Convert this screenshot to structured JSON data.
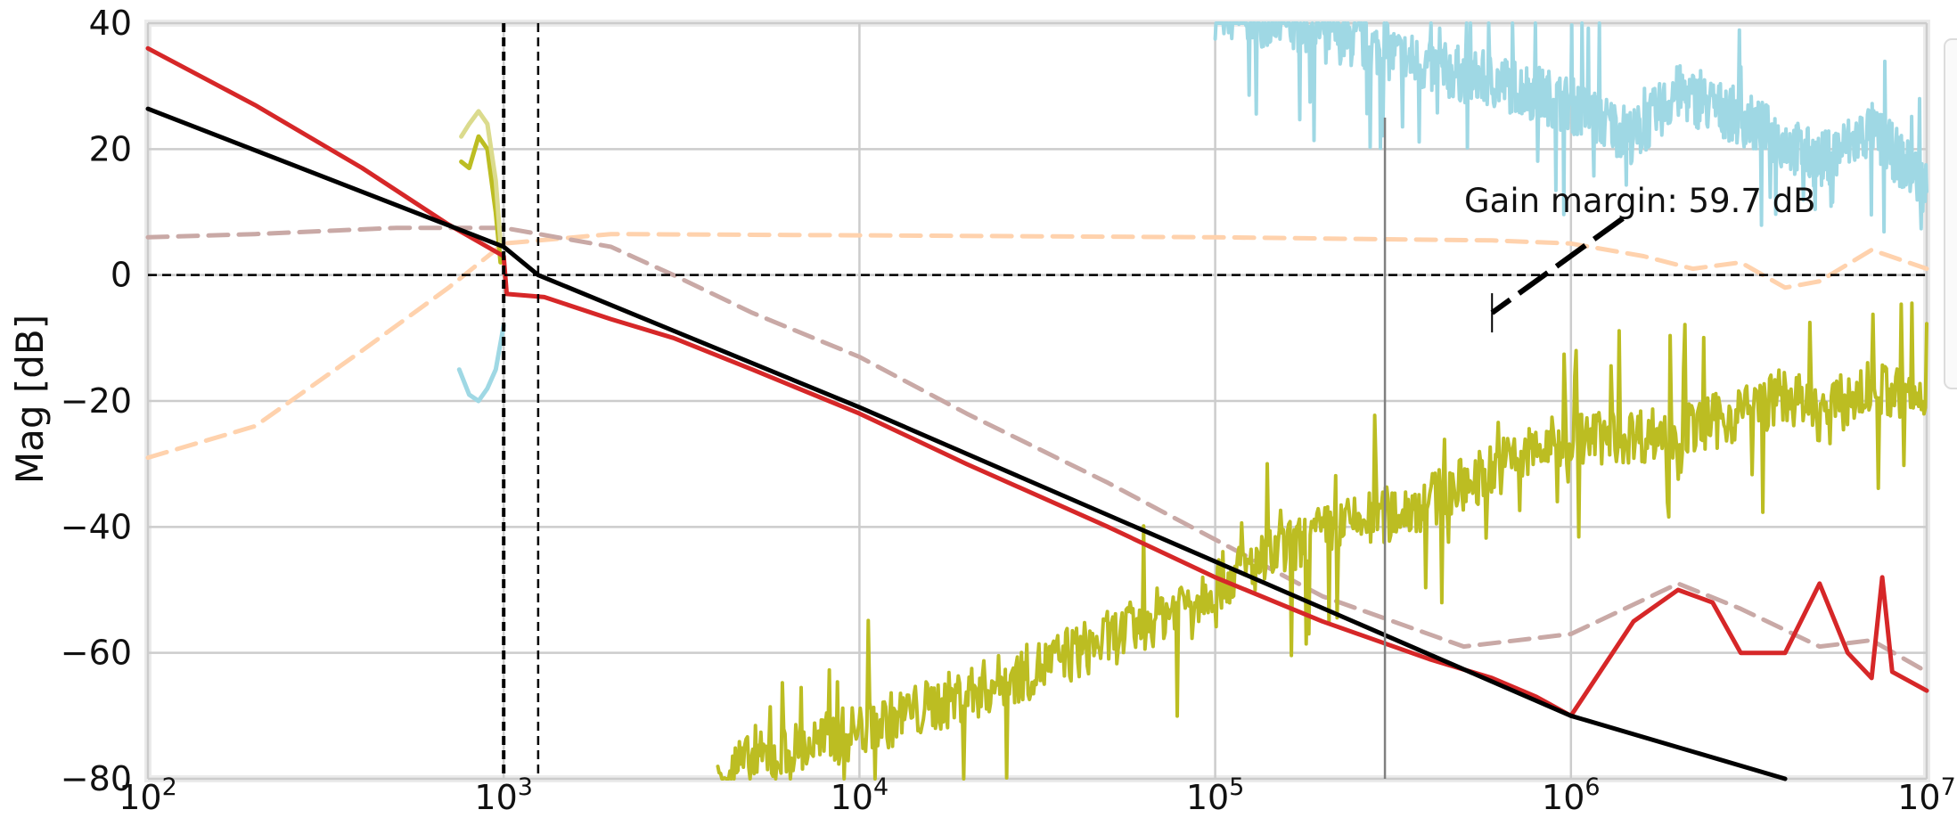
{
  "chart_data": {
    "type": "line",
    "title": "",
    "xlabel": "",
    "ylabel": "Mag [dB]",
    "x_scale": "log",
    "xlim": [
      100,
      10000000
    ],
    "ylim": [
      -80,
      40
    ],
    "grid": true,
    "x_ticks": [
      {
        "value": 100,
        "base": "10",
        "exp": "2"
      },
      {
        "value": 1000,
        "base": "10",
        "exp": "3"
      },
      {
        "value": 10000,
        "base": "10",
        "exp": "4"
      },
      {
        "value": 100000,
        "base": "10",
        "exp": "5"
      },
      {
        "value": 1000000,
        "base": "10",
        "exp": "6"
      },
      {
        "value": 10000000,
        "base": "10",
        "exp": "7"
      }
    ],
    "y_ticks": [
      {
        "value": 40,
        "label": "40"
      },
      {
        "value": 20,
        "label": "20"
      },
      {
        "value": 0,
        "label": "0"
      },
      {
        "value": -20,
        "label": "−20"
      },
      {
        "value": -40,
        "label": "−40"
      },
      {
        "value": -60,
        "label": "−60"
      },
      {
        "value": -80,
        "label": "−80"
      }
    ],
    "reference_lines": {
      "horizontal_dashed_y": 0,
      "vertical_dashed_x": [
        1000,
        1250
      ],
      "vertical_solid_x": 300000
    },
    "annotation": {
      "text": "Gain margin: 59.7 dB",
      "arrow_from": [
        1400000,
        9
      ],
      "arrow_to": [
        600000,
        -6
      ]
    },
    "series": [
      {
        "style": "dashed",
        "color": "#ffd2ad",
        "x": [
          100,
          200,
          400,
          700,
          1000,
          2000,
          10000,
          100000,
          600000,
          1000000,
          1600000,
          2200000,
          3000000,
          4000000,
          5000000,
          7000000,
          10000000
        ],
        "y": [
          -29,
          -24,
          -12,
          -2,
          5,
          6.5,
          6.3,
          6,
          5.5,
          5,
          3,
          1,
          2,
          -2,
          -1,
          4,
          1
        ]
      },
      {
        "style": "dashed",
        "color": "#c9a9a6",
        "x": [
          100,
          200,
          500,
          1000,
          2000,
          3000,
          5000,
          10000,
          20000,
          50000,
          100000,
          200000,
          500000,
          1000000,
          2000000,
          3000000,
          5000000,
          7000000,
          10000000
        ],
        "y": [
          6,
          6.5,
          7.5,
          7.5,
          4.5,
          0,
          -6,
          -13,
          -22,
          -33,
          -42,
          -51,
          -59,
          -57,
          -49,
          -53,
          -59,
          -58,
          -63
        ]
      },
      {
        "style": "solid",
        "color": "#9fd8e4",
        "noisy": true,
        "x": [
          100000,
          200000,
          400000,
          700000,
          1000000,
          1500000,
          2000000,
          3000000,
          5000000,
          7000000,
          10000000
        ],
        "y": [
          42,
          39,
          33,
          30,
          27,
          22,
          29,
          25,
          18,
          23,
          14
        ]
      },
      {
        "style": "solid",
        "color": "#9fd8e4",
        "x": [
          750,
          800,
          850,
          900,
          950,
          1000
        ],
        "y": [
          -15,
          -19,
          -20,
          -18,
          -15,
          -8
        ]
      },
      {
        "style": "solid",
        "color": "#bcbd22",
        "noisy": true,
        "x": [
          4000,
          8000,
          15000,
          30000,
          60000,
          100000,
          200000,
          400000,
          700000,
          1000000,
          2000000,
          3000000,
          4000000,
          5000000,
          7000000,
          10000000
        ],
        "y": [
          -79,
          -74,
          -69,
          -63,
          -56,
          -49,
          -41,
          -36,
          -29,
          -26,
          -25,
          -22,
          -19,
          -22,
          -18,
          -20
        ]
      },
      {
        "style": "solid",
        "color": "#bcbd22",
        "x": [
          760,
          800,
          850,
          900,
          950,
          980
        ],
        "y": [
          18,
          17,
          22,
          20,
          10,
          2
        ]
      },
      {
        "style": "solid",
        "color": "#dbdb8d",
        "x": [
          760,
          800,
          850,
          900,
          950,
          980
        ],
        "y": [
          22,
          24,
          26,
          24,
          15,
          5
        ]
      },
      {
        "style": "solid",
        "color": "#d62728",
        "x": [
          100,
          200,
          400,
          700,
          1000,
          1020,
          1300,
          2000,
          3000,
          5000,
          10000,
          20000,
          50000,
          100000,
          200000,
          400000,
          600000,
          800000,
          1000000,
          1500000,
          2000000,
          2500000,
          3000000,
          4000000,
          5000000,
          6000000,
          7000000,
          7500000,
          8000000,
          10000000
        ],
        "y": [
          36,
          27,
          17,
          8,
          3,
          -3,
          -3.5,
          -7,
          -10,
          -15,
          -22,
          -30,
          -40,
          -48,
          -55,
          -61,
          -64,
          -67,
          -70,
          -55,
          -50,
          -52,
          -60,
          -60,
          -49,
          -60,
          -64,
          -48,
          -63,
          -66
        ]
      },
      {
        "style": "solid",
        "color": "#000000",
        "x": [
          100,
          1000,
          1250,
          10000,
          100000,
          1000000,
          4000000
        ],
        "y": [
          26.4,
          4.5,
          0,
          -21,
          -45.5,
          -70,
          -84
        ]
      }
    ]
  }
}
